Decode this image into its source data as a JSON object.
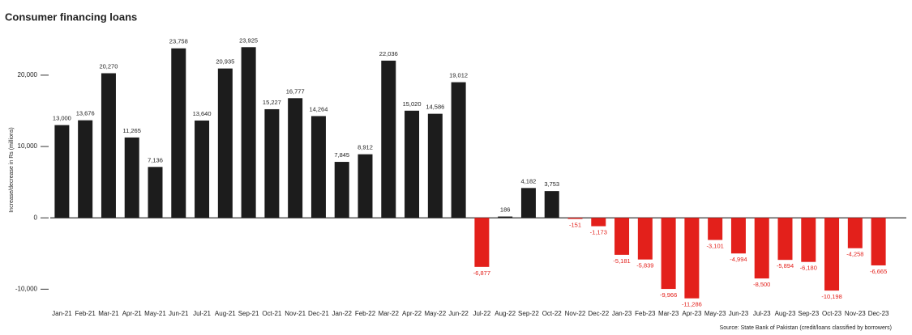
{
  "chart_data": {
    "type": "bar",
    "title": "Consumer financing loans",
    "y_label": "Increase/decrease in Rs (millions)",
    "source": "Source: State Bank of Pakistan (credit/loans classified by borrowers)",
    "categories": [
      "Jan-21",
      "Feb-21",
      "Mar-21",
      "Apr-21",
      "May-21",
      "Jun-21",
      "Jul-21",
      "Aug-21",
      "Sep-21",
      "Oct-21",
      "Nov-21",
      "Dec-21",
      "Jan-22",
      "Feb-22",
      "Mar-22",
      "Apr-22",
      "May-22",
      "Jun-22",
      "Jul-22",
      "Aug-22",
      "Sep-22",
      "Oct-22",
      "Nov-22",
      "Dec-22",
      "Jan-23",
      "Feb-23",
      "Mar-23",
      "Apr-23",
      "May-23",
      "Jun-23",
      "Jul-23",
      "Aug-23",
      "Sep-23",
      "Oct-23",
      "Nov-23",
      "Dec-23"
    ],
    "values": [
      13000,
      13676,
      20270,
      11265,
      7136,
      23758,
      13640,
      20935,
      23925,
      15227,
      16777,
      14264,
      7845,
      8912,
      22036,
      15020,
      14586,
      19012,
      -6877,
      186,
      4182,
      3753,
      -151,
      -1173,
      -5181,
      -5839,
      -9966,
      -11286,
      -3101,
      -4994,
      -8500,
      -5894,
      -6180,
      -10198,
      -4258,
      -6665
    ],
    "value_labels": [
      "13,000",
      "13,676",
      "20,270",
      "11,265",
      "7,136",
      "23,758",
      "13,640",
      "20,935",
      "23,925",
      "15,227",
      "16,777",
      "14,264",
      "7,845",
      "8,912",
      "22,036",
      "15,020",
      "14,586",
      "19,012",
      "-6,877",
      "186",
      "4,182",
      "3,753",
      "-151",
      "-1,173",
      "-5,181",
      "-5,839",
      "-9,966",
      "-11,286",
      "-3,101",
      "-4,994",
      "-8,500",
      "-5,894",
      "-6,180",
      "-10,198",
      "-4,258",
      "-6,665"
    ],
    "positive_color": "#1c1c1c",
    "negative_color": "#e3201b",
    "ylim": [
      -12000,
      26000
    ],
    "yticks": [
      {
        "value": -10000,
        "label": "-10,000"
      },
      0,
      {
        "value": 10000,
        "label": "10,000"
      },
      {
        "value": 20000,
        "label": "20,000"
      }
    ]
  }
}
